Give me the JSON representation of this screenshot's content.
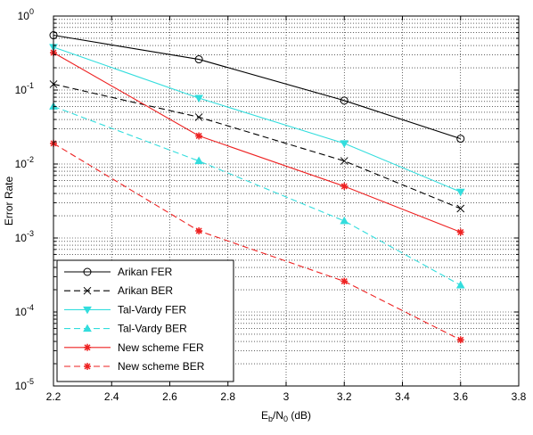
{
  "chart_data": {
    "type": "line",
    "title": "",
    "xlabel": {
      "main": "E",
      "sub1": "b",
      "mid": "/N",
      "sub2": "0",
      "tail": " (dB)"
    },
    "ylabel": "Error Rate",
    "xlim": [
      2.2,
      3.8
    ],
    "ylim": [
      1e-05,
      1
    ],
    "yscale": "log",
    "grid": true,
    "legend_position": "bottom-left",
    "x_ticks": [
      "2.2",
      "2.4",
      "2.6",
      "2.8",
      "3",
      "3.2",
      "3.4",
      "3.6",
      "3.8"
    ],
    "y_ticks": [
      {
        "base": "10",
        "exp": "0"
      },
      {
        "base": "10",
        "exp": "-1"
      },
      {
        "base": "10",
        "exp": "-2"
      },
      {
        "base": "10",
        "exp": "-3"
      },
      {
        "base": "10",
        "exp": "-4"
      },
      {
        "base": "10",
        "exp": "-5"
      }
    ],
    "series": [
      {
        "name": "Arikan FER",
        "color": "#000000",
        "dash": "solid",
        "marker": "circle",
        "x": [
          2.2,
          2.7,
          3.2,
          3.6
        ],
        "y": [
          0.55,
          0.26,
          0.072,
          0.022
        ]
      },
      {
        "name": "Arikan BER",
        "color": "#000000",
        "dash": "dashed",
        "marker": "x",
        "x": [
          2.2,
          2.7,
          3.2,
          3.6
        ],
        "y": [
          0.12,
          0.043,
          0.011,
          0.0025
        ]
      },
      {
        "name": "Tal-Vardy FER",
        "color": "#33dddd",
        "dash": "solid",
        "marker": "triangle-down",
        "x": [
          2.2,
          2.7,
          3.2,
          3.6
        ],
        "y": [
          0.38,
          0.078,
          0.019,
          0.0042
        ]
      },
      {
        "name": "Tal-Vardy BER",
        "color": "#33dddd",
        "dash": "dashed",
        "marker": "triangle-up",
        "x": [
          2.2,
          2.7,
          3.2,
          3.6
        ],
        "y": [
          0.06,
          0.011,
          0.0017,
          0.00023
        ]
      },
      {
        "name": "New scheme FER",
        "color": "#ee2222",
        "dash": "solid",
        "marker": "star",
        "x": [
          2.2,
          2.7,
          3.2,
          3.6
        ],
        "y": [
          0.32,
          0.024,
          0.005,
          0.0012
        ]
      },
      {
        "name": "New scheme BER",
        "color": "#ee2222",
        "dash": "dashed",
        "marker": "star",
        "x": [
          2.2,
          2.7,
          3.2,
          3.6
        ],
        "y": [
          0.019,
          0.00125,
          0.00026,
          4.2e-05
        ]
      }
    ]
  }
}
